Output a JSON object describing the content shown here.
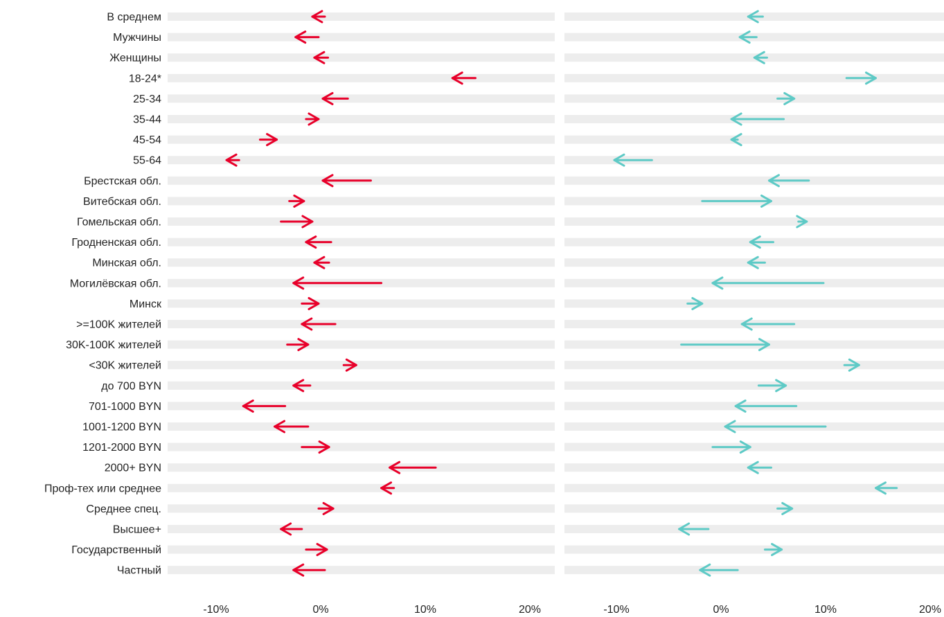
{
  "chart_data": {
    "type": "arrow",
    "categories": [
      "В среднем",
      "Мужчины",
      "Женщины",
      "18-24*",
      "25-34",
      "35-44",
      "45-54",
      "55-64",
      "Брестская обл.",
      "Витебская обл.",
      "Гомельская обл.",
      "Гродненская обл.",
      "Минская обл.",
      "Могилёвская обл.",
      "Минск",
      ">=100K жителей",
      "30K-100K жителей",
      "<30K жителей",
      "до 700 BYN",
      "701-1000 BYN",
      "1001-1200 BYN",
      "1201-2000 BYN",
      "2000+ BYN",
      "Проф-тех или среднее",
      "Среднее спец.",
      "Высшее+",
      "Государственный",
      "Частный"
    ],
    "x_ticks": [
      "-10%",
      "0%",
      "10%",
      "20%"
    ],
    "xlim": [
      -15,
      22
    ],
    "panels": [
      {
        "color": "#e8002a",
        "arrows": [
          {
            "from": 0.4,
            "to": -0.8
          },
          {
            "from": -0.2,
            "to": -2.4
          },
          {
            "from": 0.7,
            "to": -0.6
          },
          {
            "from": 14.8,
            "to": 12.6
          },
          {
            "from": 2.6,
            "to": 0.2
          },
          {
            "from": -1.4,
            "to": -0.2
          },
          {
            "from": -5.8,
            "to": -4.2
          },
          {
            "from": -7.8,
            "to": -9.0
          },
          {
            "from": 4.8,
            "to": 0.2
          },
          {
            "from": -3.0,
            "to": -1.6
          },
          {
            "from": -3.8,
            "to": -0.8
          },
          {
            "from": 1.0,
            "to": -1.4
          },
          {
            "from": 0.8,
            "to": -0.6
          },
          {
            "from": 5.8,
            "to": -2.6
          },
          {
            "from": -1.8,
            "to": -0.2
          },
          {
            "from": 1.4,
            "to": -1.8
          },
          {
            "from": -3.2,
            "to": -1.2
          },
          {
            "from": 2.2,
            "to": 3.4
          },
          {
            "from": -1.0,
            "to": -2.6
          },
          {
            "from": -3.4,
            "to": -7.4
          },
          {
            "from": -1.2,
            "to": -4.4
          },
          {
            "from": -1.8,
            "to": 0.8
          },
          {
            "from": 11.0,
            "to": 6.6
          },
          {
            "from": 7.0,
            "to": 5.8
          },
          {
            "from": -0.2,
            "to": 1.2
          },
          {
            "from": -1.8,
            "to": -3.8
          },
          {
            "from": -1.4,
            "to": 0.6
          },
          {
            "from": 0.4,
            "to": -2.6
          }
        ]
      },
      {
        "color": "#5ecac6",
        "arrows": [
          {
            "from": 4.0,
            "to": 2.6
          },
          {
            "from": 3.4,
            "to": 1.8
          },
          {
            "from": 4.4,
            "to": 3.2
          },
          {
            "from": 12.0,
            "to": 14.8
          },
          {
            "from": 5.4,
            "to": 7.0
          },
          {
            "from": 6.0,
            "to": 1.0
          },
          {
            "from": 1.6,
            "to": 1.0
          },
          {
            "from": -6.6,
            "to": -10.2
          },
          {
            "from": 8.4,
            "to": 4.6
          },
          {
            "from": -1.8,
            "to": 4.8
          },
          {
            "from": 7.4,
            "to": 8.2
          },
          {
            "from": 5.0,
            "to": 2.8
          },
          {
            "from": 4.2,
            "to": 2.6
          },
          {
            "from": 9.8,
            "to": -0.8
          },
          {
            "from": -3.2,
            "to": -1.8
          },
          {
            "from": 7.0,
            "to": 2.0
          },
          {
            "from": -3.8,
            "to": 4.6
          },
          {
            "from": 11.8,
            "to": 13.2
          },
          {
            "from": 3.6,
            "to": 6.2
          },
          {
            "from": 7.2,
            "to": 1.4
          },
          {
            "from": 10.0,
            "to": 0.4
          },
          {
            "from": -0.8,
            "to": 2.8
          },
          {
            "from": 4.8,
            "to": 2.6
          },
          {
            "from": 16.8,
            "to": 14.8
          },
          {
            "from": 5.4,
            "to": 6.8
          },
          {
            "from": -1.2,
            "to": -4.0
          },
          {
            "from": 4.2,
            "to": 5.8
          },
          {
            "from": 1.6,
            "to": -2.0
          }
        ]
      }
    ]
  }
}
